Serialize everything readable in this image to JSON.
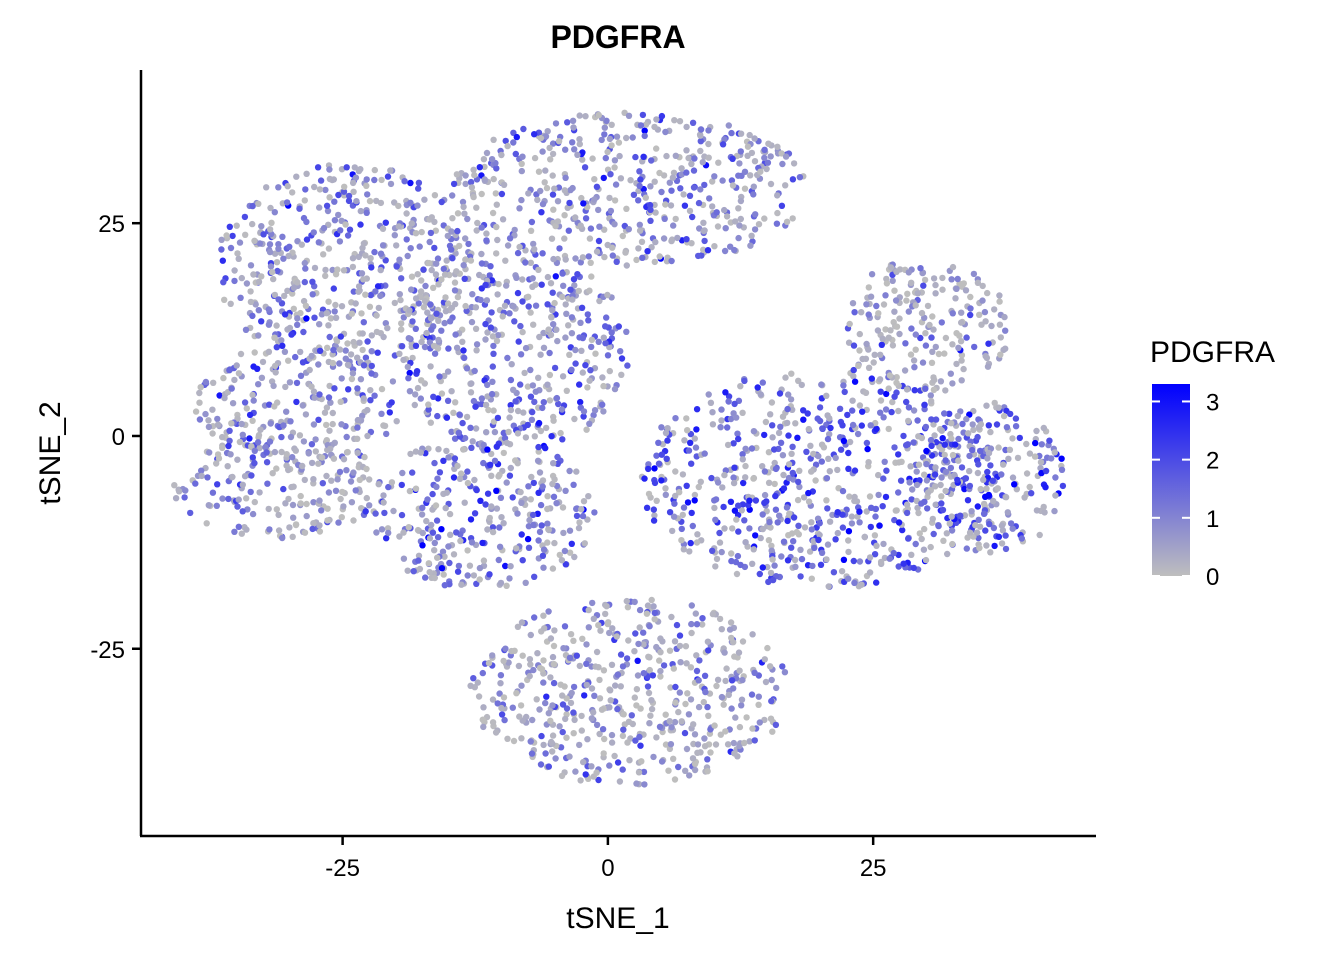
{
  "chart_data": {
    "type": "scatter",
    "title": "PDGFRA",
    "xlabel": "tSNE_1",
    "ylabel": "tSNE_2",
    "xlim": [
      -44,
      46
    ],
    "ylim": [
      -47,
      43
    ],
    "x_ticks": [
      -25,
      0,
      25
    ],
    "y_ticks": [
      -25,
      0,
      25
    ],
    "x_tick_labels": [
      "-25",
      "0",
      "25"
    ],
    "y_tick_labels": [
      "-25",
      "0",
      "25"
    ],
    "grid": false,
    "legend": {
      "title": "PDGFRA",
      "placement": "right",
      "type": "colorbar",
      "range": [
        0,
        3.3
      ],
      "ticks": [
        0,
        1,
        2,
        3
      ],
      "tick_labels": [
        "0",
        "1",
        "2",
        "3"
      ],
      "low_color": "#bebebe",
      "high_color": "#0000ff"
    },
    "clusters": [
      {
        "center": [
          -24,
          20
        ],
        "radius": [
          13,
          12
        ],
        "mean_expression": 1.1
      },
      {
        "center": [
          -29,
          4
        ],
        "radius": [
          10,
          7
        ],
        "mean_expression": 1.0
      },
      {
        "center": [
          -31,
          -6
        ],
        "radius": [
          10,
          6
        ],
        "mean_expression": 0.9
      },
      {
        "center": [
          -12,
          -9
        ],
        "radius": [
          11,
          9
        ],
        "mean_expression": 1.3
      },
      {
        "center": [
          -9,
          10
        ],
        "radius": [
          11,
          12
        ],
        "mean_expression": 1.2
      },
      {
        "center": [
          2,
          29
        ],
        "radius": [
          17,
          9
        ],
        "mean_expression": 1.2
      },
      {
        "center": [
          20,
          -5
        ],
        "radius": [
          17,
          13
        ],
        "mean_expression": 1.6
      },
      {
        "center": [
          36,
          -5
        ],
        "radius": [
          7,
          9
        ],
        "mean_expression": 1.6
      },
      {
        "center": [
          30,
          13
        ],
        "radius": [
          8,
          8
        ],
        "mean_expression": 0.5
      },
      {
        "center": [
          2,
          -30
        ],
        "radius": [
          15,
          11
        ],
        "mean_expression": 0.8
      }
    ]
  }
}
